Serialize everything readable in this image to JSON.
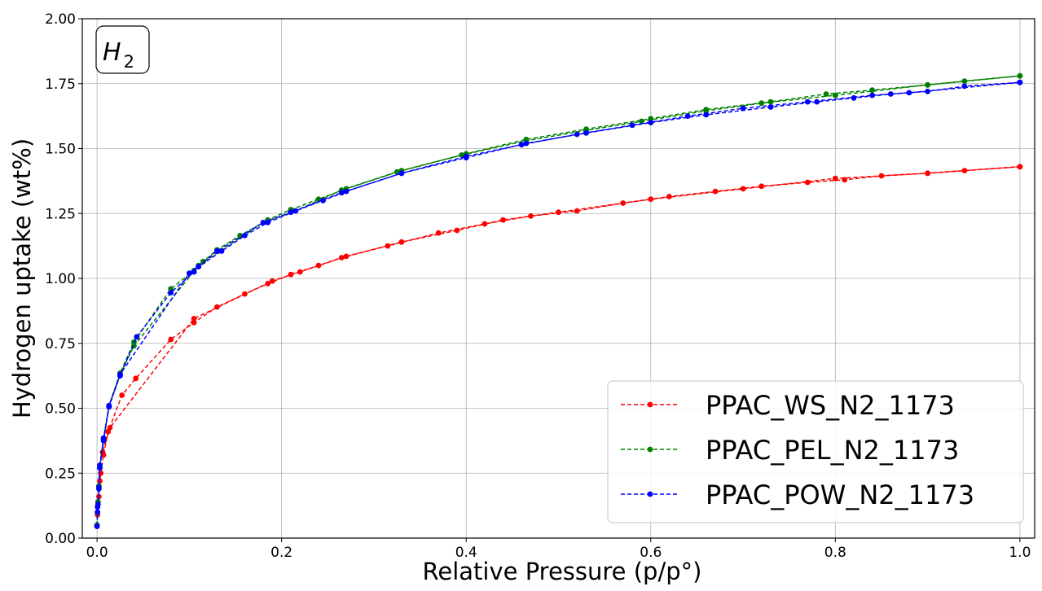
{
  "chart_data": {
    "type": "line",
    "xlabel": "Relative Pressure (p/p°)",
    "ylabel": "Hydrogen uptake (wt%)",
    "annotation": {
      "base": "H",
      "subscript": "2"
    },
    "xlim": [
      0.0,
      1.0
    ],
    "ylim": [
      0.0,
      2.0
    ],
    "xticks": [
      "0.0",
      "0.2",
      "0.4",
      "0.6",
      "0.8",
      "1.0"
    ],
    "yticks": [
      "0.00",
      "0.25",
      "0.50",
      "0.75",
      "1.00",
      "1.25",
      "1.50",
      "1.75",
      "2.00"
    ],
    "grid": true,
    "legend_position": "lower-right",
    "series": [
      {
        "name": "PPAC_WS_N2_1173",
        "color": "#ff0000",
        "adsorption": [
          [
            0.0,
            0.05
          ],
          [
            0.0005,
            0.09
          ],
          [
            0.001,
            0.13
          ],
          [
            0.002,
            0.16
          ],
          [
            0.003,
            0.22
          ],
          [
            0.004,
            0.25
          ],
          [
            0.007,
            0.32
          ],
          [
            0.012,
            0.41
          ],
          [
            0.027,
            0.55
          ],
          [
            0.042,
            0.615
          ],
          [
            0.08,
            0.765
          ],
          [
            0.105,
            0.83
          ],
          [
            0.13,
            0.89
          ],
          [
            0.16,
            0.94
          ],
          [
            0.185,
            0.98
          ],
          [
            0.21,
            1.015
          ],
          [
            0.24,
            1.05
          ],
          [
            0.265,
            1.08
          ],
          [
            0.315,
            1.125
          ],
          [
            0.37,
            1.175
          ],
          [
            0.42,
            1.21
          ],
          [
            0.47,
            1.24
          ],
          [
            0.52,
            1.26
          ],
          [
            0.57,
            1.29
          ],
          [
            0.62,
            1.315
          ],
          [
            0.67,
            1.335
          ],
          [
            0.72,
            1.355
          ],
          [
            0.77,
            1.37
          ],
          [
            0.81,
            1.38
          ],
          [
            0.85,
            1.395
          ],
          [
            0.9,
            1.405
          ],
          [
            0.94,
            1.415
          ],
          [
            1.0,
            1.43
          ]
        ],
        "desorption": [
          [
            1.0,
            1.43
          ],
          [
            0.9,
            1.405
          ],
          [
            0.8,
            1.385
          ],
          [
            0.7,
            1.345
          ],
          [
            0.6,
            1.305
          ],
          [
            0.5,
            1.255
          ],
          [
            0.44,
            1.225
          ],
          [
            0.39,
            1.185
          ],
          [
            0.33,
            1.14
          ],
          [
            0.27,
            1.085
          ],
          [
            0.22,
            1.025
          ],
          [
            0.19,
            0.99
          ],
          [
            0.105,
            0.845
          ],
          [
            0.014,
            0.425
          ],
          [
            0.006,
            0.33
          ]
        ]
      },
      {
        "name": "PPAC_PEL_N2_1173",
        "color": "#008000",
        "adsorption": [
          [
            0.0,
            0.05
          ],
          [
            0.0005,
            0.1
          ],
          [
            0.001,
            0.14
          ],
          [
            0.002,
            0.2
          ],
          [
            0.003,
            0.27
          ],
          [
            0.007,
            0.38
          ],
          [
            0.013,
            0.51
          ],
          [
            0.025,
            0.635
          ],
          [
            0.04,
            0.755
          ],
          [
            0.08,
            0.96
          ],
          [
            0.105,
            1.03
          ],
          [
            0.115,
            1.065
          ],
          [
            0.13,
            1.11
          ],
          [
            0.155,
            1.165
          ],
          [
            0.185,
            1.225
          ],
          [
            0.21,
            1.265
          ],
          [
            0.24,
            1.305
          ],
          [
            0.27,
            1.345
          ],
          [
            0.33,
            1.415
          ],
          [
            0.4,
            1.48
          ],
          [
            0.465,
            1.535
          ],
          [
            0.53,
            1.575
          ],
          [
            0.6,
            1.615
          ],
          [
            0.66,
            1.65
          ],
          [
            0.73,
            1.68
          ],
          [
            0.79,
            1.71
          ],
          [
            0.84,
            1.725
          ],
          [
            0.9,
            1.745
          ],
          [
            0.94,
            1.76
          ],
          [
            1.0,
            1.78
          ]
        ],
        "desorption": [
          [
            1.0,
            1.78
          ],
          [
            0.9,
            1.745
          ],
          [
            0.8,
            1.705
          ],
          [
            0.72,
            1.675
          ],
          [
            0.66,
            1.645
          ],
          [
            0.59,
            1.605
          ],
          [
            0.53,
            1.57
          ],
          [
            0.465,
            1.53
          ],
          [
            0.395,
            1.475
          ],
          [
            0.325,
            1.41
          ],
          [
            0.265,
            1.34
          ],
          [
            0.215,
            1.26
          ],
          [
            0.18,
            1.215
          ],
          [
            0.11,
            1.05
          ],
          [
            0.04,
            0.74
          ],
          [
            0.025,
            0.63
          ],
          [
            0.013,
            0.51
          ],
          [
            0.007,
            0.38
          ],
          [
            0.003,
            0.28
          ]
        ]
      },
      {
        "name": "PPAC_POW_N2_1173",
        "color": "#0000ff",
        "adsorption": [
          [
            0.0,
            0.045
          ],
          [
            0.0005,
            0.1
          ],
          [
            0.001,
            0.13
          ],
          [
            0.002,
            0.19
          ],
          [
            0.003,
            0.27
          ],
          [
            0.007,
            0.375
          ],
          [
            0.013,
            0.51
          ],
          [
            0.025,
            0.625
          ],
          [
            0.043,
            0.775
          ],
          [
            0.08,
            0.945
          ],
          [
            0.105,
            1.025
          ],
          [
            0.11,
            1.045
          ],
          [
            0.135,
            1.105
          ],
          [
            0.16,
            1.165
          ],
          [
            0.185,
            1.215
          ],
          [
            0.215,
            1.26
          ],
          [
            0.245,
            1.3
          ],
          [
            0.27,
            1.335
          ],
          [
            0.33,
            1.405
          ],
          [
            0.4,
            1.465
          ],
          [
            0.465,
            1.52
          ],
          [
            0.53,
            1.56
          ],
          [
            0.6,
            1.6
          ],
          [
            0.66,
            1.63
          ],
          [
            0.73,
            1.66
          ],
          [
            0.78,
            1.68
          ],
          [
            0.82,
            1.695
          ],
          [
            0.86,
            1.71
          ],
          [
            0.9,
            1.72
          ],
          [
            0.94,
            1.74
          ],
          [
            1.0,
            1.755
          ]
        ],
        "desorption": [
          [
            1.0,
            1.755
          ],
          [
            0.88,
            1.715
          ],
          [
            0.84,
            1.705
          ],
          [
            0.77,
            1.68
          ],
          [
            0.7,
            1.655
          ],
          [
            0.64,
            1.625
          ],
          [
            0.58,
            1.59
          ],
          [
            0.52,
            1.555
          ],
          [
            0.46,
            1.515
          ],
          [
            0.4,
            1.47
          ],
          [
            0.33,
            1.405
          ],
          [
            0.265,
            1.33
          ],
          [
            0.21,
            1.255
          ],
          [
            0.18,
            1.215
          ],
          [
            0.13,
            1.105
          ],
          [
            0.1,
            1.02
          ],
          [
            0.025,
            0.63
          ],
          [
            0.013,
            0.505
          ],
          [
            0.007,
            0.385
          ],
          [
            0.003,
            0.28
          ],
          [
            0.002,
            0.195
          ],
          [
            0.0005,
            0.12
          ]
        ]
      }
    ]
  }
}
